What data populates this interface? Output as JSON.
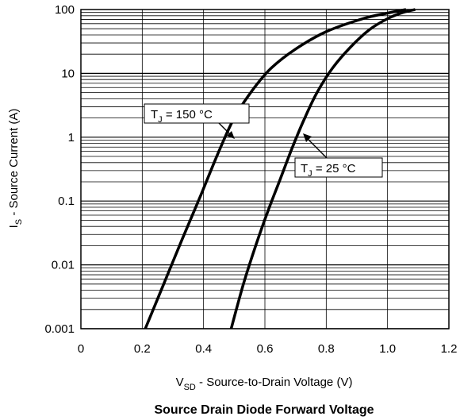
{
  "chart_data": {
    "type": "line",
    "title": "Source Drain Diode Forward Voltage",
    "xlabel": {
      "main": "V",
      "sub": "SD",
      "rest": " - Source-to-Drain Voltage (V)"
    },
    "ylabel": {
      "main": "I",
      "sub": "S",
      "rest": " - Source Current (A)"
    },
    "xlim": [
      0,
      1.2
    ],
    "ylim": [
      0.001,
      100
    ],
    "yscale": "log",
    "grid": true,
    "x_ticks": [
      {
        "v": 0,
        "label": "0"
      },
      {
        "v": 0.2,
        "label": "0.2"
      },
      {
        "v": 0.4,
        "label": "0.4"
      },
      {
        "v": 0.6,
        "label": "0.6"
      },
      {
        "v": 0.8,
        "label": "0.8"
      },
      {
        "v": 1.0,
        "label": "1.0"
      },
      {
        "v": 1.2,
        "label": "1.2"
      }
    ],
    "y_ticks": [
      {
        "v": 0.001,
        "label": "0.001"
      },
      {
        "v": 0.01,
        "label": "0.01"
      },
      {
        "v": 0.1,
        "label": "0.1"
      },
      {
        "v": 1,
        "label": "1"
      },
      {
        "v": 10,
        "label": "10"
      },
      {
        "v": 100,
        "label": "100"
      }
    ],
    "series": [
      {
        "name": "T_J = 150 °C",
        "x": [
          0.21,
          0.27,
          0.33,
          0.39,
          0.45,
          0.5,
          0.56,
          0.62,
          0.7,
          0.8,
          0.92,
          1.0,
          1.06
        ],
        "y": [
          0.001,
          0.005,
          0.025,
          0.12,
          0.6,
          2,
          5.5,
          12,
          24,
          45,
          72,
          88,
          100
        ]
      },
      {
        "name": "T_J = 25 °C",
        "x": [
          0.49,
          0.53,
          0.57,
          0.61,
          0.65,
          0.69,
          0.73,
          0.77,
          0.82,
          0.88,
          0.94,
          1.0,
          1.05,
          1.09
        ],
        "y": [
          0.001,
          0.005,
          0.02,
          0.07,
          0.22,
          0.7,
          2,
          5,
          12,
          26,
          48,
          72,
          90,
          100
        ]
      }
    ],
    "annotations": [
      {
        "main": "T",
        "sub": "J",
        "rest": " = 150 °C",
        "series": 0
      },
      {
        "main": "T",
        "sub": "J",
        "rest": " = 25 °C",
        "series": 1
      }
    ]
  }
}
